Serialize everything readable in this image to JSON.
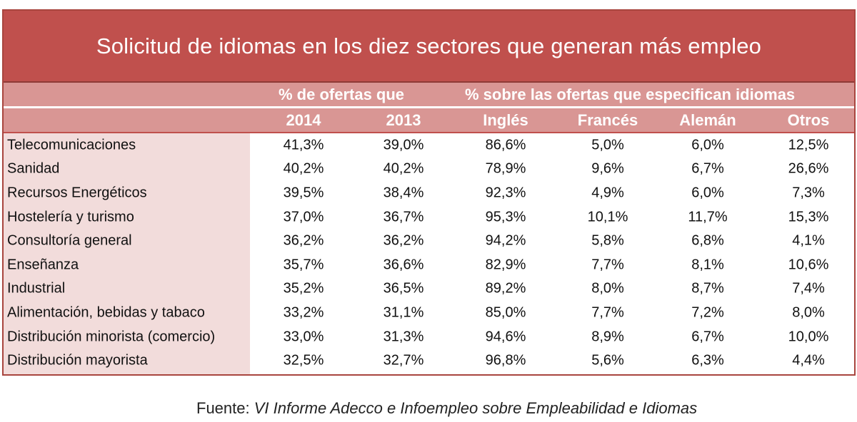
{
  "chart_data": {
    "type": "table",
    "title": "Solicitud de idiomas en los diez sectores que generan más empleo",
    "group_headers": [
      "% de ofertas que",
      "% sobre las ofertas que especifican idiomas"
    ],
    "columns": [
      "2014",
      "2013",
      "Inglés",
      "Francés",
      "Alemán",
      "Otros"
    ],
    "rows": [
      {
        "sector": "Telecomunicaciones",
        "values": [
          "41,3%",
          "39,0%",
          "86,6%",
          "5,0%",
          "6,0%",
          "12,5%"
        ]
      },
      {
        "sector": "Sanidad",
        "values": [
          "40,2%",
          "40,2%",
          "78,9%",
          "9,6%",
          "6,7%",
          "26,6%"
        ]
      },
      {
        "sector": "Recursos Energéticos",
        "values": [
          "39,5%",
          "38,4%",
          "92,3%",
          "4,9%",
          "6,0%",
          "7,3%"
        ]
      },
      {
        "sector": "Hostelería y turismo",
        "values": [
          "37,0%",
          "36,7%",
          "95,3%",
          "10,1%",
          "11,7%",
          "15,3%"
        ]
      },
      {
        "sector": "Consultoría general",
        "values": [
          "36,2%",
          "36,2%",
          "94,2%",
          "5,8%",
          "6,8%",
          "4,1%"
        ]
      },
      {
        "sector": "Enseñanza",
        "values": [
          "35,7%",
          "36,6%",
          "82,9%",
          "7,7%",
          "8,1%",
          "10,6%"
        ]
      },
      {
        "sector": "Industrial",
        "values": [
          "35,2%",
          "36,5%",
          "89,2%",
          "8,0%",
          "8,7%",
          "7,4%"
        ]
      },
      {
        "sector": "Alimentación, bebidas y tabaco",
        "values": [
          "33,2%",
          "31,1%",
          "85,0%",
          "7,7%",
          "7,2%",
          "8,0%"
        ]
      },
      {
        "sector": "Distribución minorista (comercio)",
        "values": [
          "33,0%",
          "31,3%",
          "94,6%",
          "8,9%",
          "6,7%",
          "10,0%"
        ]
      },
      {
        "sector": "Distribución mayorista",
        "values": [
          "32,5%",
          "32,7%",
          "96,8%",
          "5,6%",
          "6,3%",
          "4,4%"
        ]
      }
    ],
    "colors": {
      "title_bg": "#c0504d",
      "header_bg": "#d99694",
      "sector_bg": "#f2dcdb"
    }
  },
  "source": {
    "label": "Fuente:",
    "text": "VI Informe Adecco e Infoempleo sobre Empleabilidad e Idiomas"
  }
}
